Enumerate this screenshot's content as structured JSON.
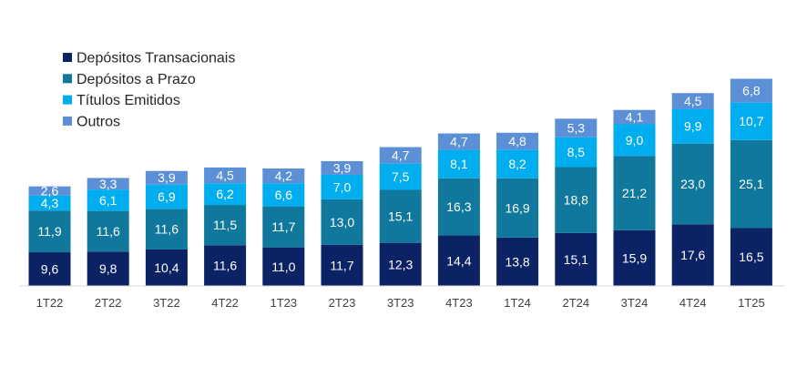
{
  "chart_data": {
    "type": "bar",
    "stacked": true,
    "categories": [
      "1T22",
      "2T22",
      "3T22",
      "4T22",
      "1T23",
      "2T23",
      "3T23",
      "4T23",
      "1T24",
      "2T24",
      "3T24",
      "4T24",
      "1T25"
    ],
    "series": [
      {
        "name": "Depósitos Transacionais",
        "color": "#0b2265",
        "values": [
          9.6,
          9.8,
          10.4,
          11.6,
          11.0,
          11.7,
          12.3,
          14.4,
          13.8,
          15.1,
          15.9,
          17.6,
          16.5
        ],
        "labels": [
          "9,6",
          "9,8",
          "10,4",
          "11,6",
          "11,0",
          "11,7",
          "12,3",
          "14,4",
          "13,8",
          "15,1",
          "15,9",
          "17,6",
          "16,5"
        ]
      },
      {
        "name": "Depósitos a Prazo",
        "color": "#0f789c",
        "values": [
          11.9,
          11.6,
          11.6,
          11.5,
          11.7,
          13.0,
          15.1,
          16.3,
          16.9,
          18.8,
          21.2,
          23.0,
          25.1
        ],
        "labels": [
          "11,9",
          "11,6",
          "11,6",
          "11,5",
          "11,7",
          "13,0",
          "15,1",
          "16,3",
          "16,9",
          "18,8",
          "21,2",
          "23,0",
          "25,1"
        ]
      },
      {
        "name": "Títulos Emitidos",
        "color": "#00aeef",
        "values": [
          4.3,
          6.1,
          6.9,
          6.2,
          6.6,
          7.0,
          7.5,
          8.1,
          8.2,
          8.5,
          9.0,
          9.9,
          10.7
        ],
        "labels": [
          "4,3",
          "6,1",
          "6,9",
          "6,2",
          "6,6",
          "7,0",
          "7,5",
          "8,1",
          "8,2",
          "8,5",
          "9,0",
          "9,9",
          "10,7"
        ]
      },
      {
        "name": "Outros",
        "color": "#5b8fd6",
        "values": [
          2.6,
          3.3,
          3.9,
          4.5,
          4.2,
          3.9,
          4.7,
          4.7,
          4.8,
          5.3,
          4.1,
          4.5,
          6.8
        ],
        "labels": [
          "2,6",
          "3,3",
          "3,9",
          "4,5",
          "4,2",
          "3,9",
          "4,7",
          "4,7",
          "4,8",
          "5,3",
          "4,1",
          "4,5",
          "6,8"
        ]
      }
    ],
    "legend": {
      "position": "top-left",
      "items": [
        "Depósitos Transacionais",
        "Depósitos a Prazo",
        "Títulos Emitidos",
        "Outros"
      ]
    },
    "grid": false,
    "title": "",
    "xlabel": "",
    "ylabel": ""
  }
}
